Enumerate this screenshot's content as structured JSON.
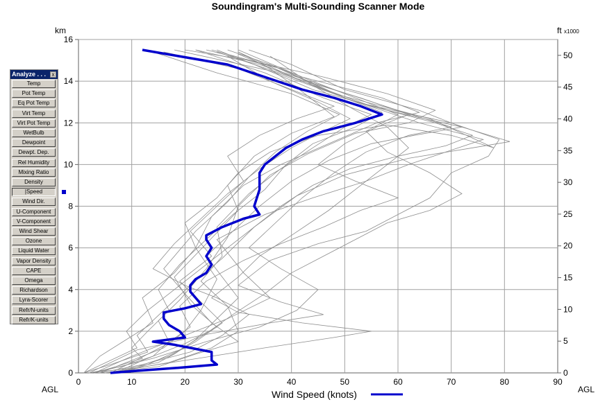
{
  "chart_data": {
    "type": "line",
    "title": "Soundingram's Multi-Sounding Scanner Mode",
    "xlabel": "Wind Speed (knots)",
    "ylabel_left_unit": "km",
    "ylabel_right_unit": "ft",
    "ylabel_right_multiplier": "x1000",
    "bottom_left_label": "AGL",
    "bottom_right_label": "AGL",
    "xlim": [
      0,
      90
    ],
    "ylim": [
      0,
      16
    ],
    "x_ticks": [
      0,
      10,
      20,
      30,
      40,
      50,
      60,
      70,
      80,
      90
    ],
    "y_ticks_left": [
      0,
      2,
      4,
      6,
      8,
      10,
      12,
      14,
      16
    ],
    "y_ticks_right": [
      0,
      5,
      10,
      15,
      20,
      25,
      30,
      35,
      40,
      45,
      50
    ],
    "grid": true,
    "legend": "bottom-center",
    "colors": {
      "mean": "#0000cc",
      "individual": "#8c8c8c",
      "grid": "#a0a0a0"
    },
    "series": [
      {
        "name": "Wind Speed (knots)",
        "role": "mean",
        "x": [
          6,
          11,
          19,
          26,
          25,
          25,
          25,
          21,
          18,
          14,
          20,
          19,
          17,
          16,
          16,
          20,
          23,
          22,
          21,
          21,
          22,
          24,
          25,
          24,
          25,
          24,
          24,
          27,
          31,
          34,
          33,
          34,
          34,
          35,
          37,
          39,
          42,
          46,
          52,
          57,
          53,
          48,
          42,
          35,
          28,
          12
        ],
        "y": [
          0.0,
          0.1,
          0.25,
          0.4,
          0.6,
          0.8,
          1.0,
          1.2,
          1.35,
          1.5,
          1.7,
          2.0,
          2.3,
          2.6,
          2.9,
          3.1,
          3.3,
          3.6,
          3.9,
          4.2,
          4.5,
          4.8,
          5.2,
          5.6,
          6.0,
          6.4,
          6.6,
          7.0,
          7.4,
          7.6,
          8.0,
          8.8,
          9.6,
          10.0,
          10.4,
          10.8,
          11.2,
          11.6,
          12.0,
          12.4,
          12.8,
          13.2,
          13.6,
          14.2,
          14.8,
          15.5
        ]
      }
    ],
    "spaghetti_profiles": [
      [
        [
          2,
          0
        ],
        [
          8,
          0.3
        ],
        [
          14,
          0.8
        ],
        [
          17,
          1.5
        ],
        [
          15,
          2.5
        ],
        [
          19,
          3.5
        ],
        [
          24,
          5
        ],
        [
          28,
          6.5
        ],
        [
          30,
          8
        ],
        [
          36,
          9.5
        ],
        [
          43,
          10.5
        ],
        [
          52,
          11.5
        ],
        [
          62,
          12
        ],
        [
          67,
          12.6
        ],
        [
          58,
          13.4
        ],
        [
          46,
          14.2
        ],
        [
          32,
          15
        ],
        [
          20,
          15.5
        ]
      ],
      [
        [
          4,
          0
        ],
        [
          9,
          0.5
        ],
        [
          16,
          1.2
        ],
        [
          20,
          2
        ],
        [
          23,
          3
        ],
        [
          26,
          4.5
        ],
        [
          22,
          6
        ],
        [
          25,
          7.5
        ],
        [
          31,
          9
        ],
        [
          38,
          10
        ],
        [
          47,
          11
        ],
        [
          56,
          12
        ],
        [
          64,
          12.5
        ],
        [
          57,
          13.2
        ],
        [
          42,
          14.2
        ],
        [
          30,
          15.5
        ]
      ],
      [
        [
          1,
          0
        ],
        [
          6,
          0.4
        ],
        [
          13,
          1
        ],
        [
          11,
          1.8
        ],
        [
          16,
          3
        ],
        [
          21,
          4.2
        ],
        [
          27,
          5.5
        ],
        [
          33,
          7
        ],
        [
          41,
          8.5
        ],
        [
          50,
          9.5
        ],
        [
          62,
          10.3
        ],
        [
          74,
          10.8
        ],
        [
          81,
          11.1
        ],
        [
          72,
          11.8
        ],
        [
          58,
          12.6
        ],
        [
          44,
          13.6
        ],
        [
          33,
          14.8
        ],
        [
          26,
          15.5
        ]
      ],
      [
        [
          7,
          0
        ],
        [
          12,
          0.6
        ],
        [
          20,
          1.4
        ],
        [
          26,
          2.2
        ],
        [
          21,
          3.3
        ],
        [
          18,
          4.6
        ],
        [
          24,
          6.2
        ],
        [
          30,
          7.8
        ],
        [
          28,
          9
        ],
        [
          33,
          10.4
        ],
        [
          40,
          11.5
        ],
        [
          48,
          12.3
        ],
        [
          42,
          13.5
        ],
        [
          36,
          14.6
        ],
        [
          30,
          15.4
        ]
      ],
      [
        [
          3,
          0
        ],
        [
          10,
          0.8
        ],
        [
          18,
          1.6
        ],
        [
          28,
          2.6
        ],
        [
          36,
          3.6
        ],
        [
          31,
          4.8
        ],
        [
          26,
          6.4
        ],
        [
          35,
          7.6
        ],
        [
          44,
          8.4
        ],
        [
          54,
          9.2
        ],
        [
          62,
          10
        ],
        [
          69,
          10.6
        ],
        [
          76,
          11.2
        ],
        [
          64,
          12
        ],
        [
          50,
          13.2
        ],
        [
          38,
          14.6
        ],
        [
          24,
          15.5
        ]
      ],
      [
        [
          5,
          0
        ],
        [
          15,
          0.3
        ],
        [
          22,
          0.9
        ],
        [
          30,
          1.5
        ],
        [
          25,
          2.4
        ],
        [
          20,
          3.8
        ],
        [
          16,
          5
        ],
        [
          22,
          6.8
        ],
        [
          28,
          8.2
        ],
        [
          32,
          9.4
        ],
        [
          37,
          10.6
        ],
        [
          43,
          11.6
        ],
        [
          49,
          12.4
        ],
        [
          40,
          13.4
        ],
        [
          26,
          14.4
        ],
        [
          14,
          15.4
        ]
      ],
      [
        [
          2,
          0
        ],
        [
          11,
          1.1
        ],
        [
          23,
          1.8
        ],
        [
          36,
          2.4
        ],
        [
          46,
          2.8
        ],
        [
          38,
          3.4
        ],
        [
          30,
          4.2
        ],
        [
          36,
          5.4
        ],
        [
          45,
          6.2
        ],
        [
          54,
          6.8
        ],
        [
          60,
          7.6
        ],
        [
          66,
          8.4
        ],
        [
          70,
          9.6
        ],
        [
          77,
          10.4
        ],
        [
          79,
          11.2
        ],
        [
          70,
          12
        ],
        [
          52,
          13
        ],
        [
          40,
          14.2
        ],
        [
          30,
          15.3
        ]
      ],
      [
        [
          6,
          0
        ],
        [
          17,
          0.5
        ],
        [
          25,
          1.2
        ],
        [
          30,
          2
        ],
        [
          28,
          3.2
        ],
        [
          23,
          4.4
        ],
        [
          27,
          5.6
        ],
        [
          26,
          7
        ],
        [
          32,
          8.6
        ],
        [
          38,
          9.8
        ],
        [
          44,
          10.8
        ],
        [
          50,
          11.8
        ],
        [
          55,
          12.4
        ],
        [
          46,
          13.2
        ],
        [
          35,
          14.4
        ],
        [
          22,
          15.5
        ]
      ],
      [
        [
          1,
          0
        ],
        [
          4,
          0.8
        ],
        [
          9,
          1.6
        ],
        [
          14,
          2.4
        ],
        [
          12,
          3.6
        ],
        [
          18,
          4.8
        ],
        [
          22,
          6
        ],
        [
          20,
          7.2
        ],
        [
          26,
          8.4
        ],
        [
          30,
          9.6
        ],
        [
          36,
          10.6
        ],
        [
          45,
          11.4
        ],
        [
          58,
          11.9
        ],
        [
          70,
          11.4
        ],
        [
          78,
          10.8
        ],
        [
          66,
          12.2
        ],
        [
          48,
          13.4
        ],
        [
          36,
          14.8
        ],
        [
          28,
          15.5
        ]
      ],
      [
        [
          8,
          0
        ],
        [
          13,
          0.4
        ],
        [
          19,
          1.1
        ],
        [
          24,
          1.9
        ],
        [
          29,
          2.8
        ],
        [
          35,
          3.8
        ],
        [
          40,
          4.8
        ],
        [
          46,
          5.6
        ],
        [
          52,
          6.4
        ],
        [
          58,
          7.2
        ],
        [
          66,
          7.8
        ],
        [
          72,
          8.6
        ],
        [
          66,
          9.6
        ],
        [
          58,
          10.6
        ],
        [
          54,
          11.6
        ],
        [
          60,
          12.4
        ],
        [
          50,
          13.4
        ],
        [
          38,
          14.6
        ],
        [
          25,
          15.5
        ]
      ],
      [
        [
          3,
          0
        ],
        [
          7,
          0.3
        ],
        [
          12,
          0.7
        ],
        [
          10,
          1.2
        ],
        [
          13,
          2
        ],
        [
          17,
          3
        ],
        [
          15,
          4
        ],
        [
          19,
          5.2
        ],
        [
          24,
          6.4
        ],
        [
          29,
          7.6
        ],
        [
          35,
          8.8
        ],
        [
          39,
          10
        ],
        [
          44,
          11
        ],
        [
          52,
          11.8
        ],
        [
          57,
          12.5
        ],
        [
          49,
          13.3
        ],
        [
          36,
          14.5
        ],
        [
          18,
          15.5
        ]
      ],
      [
        [
          5,
          0
        ],
        [
          20,
          0.6
        ],
        [
          35,
          1.2
        ],
        [
          48,
          1.7
        ],
        [
          55,
          2
        ],
        [
          42,
          2.4
        ],
        [
          30,
          2.9
        ],
        [
          25,
          3.6
        ],
        [
          30,
          4.6
        ],
        [
          34,
          5.6
        ],
        [
          40,
          6.6
        ],
        [
          47,
          7.8
        ],
        [
          52,
          8.8
        ],
        [
          57,
          9.8
        ],
        [
          62,
          10.8
        ],
        [
          58,
          11.8
        ],
        [
          52,
          12.6
        ],
        [
          44,
          13.8
        ],
        [
          36,
          15.2
        ]
      ],
      [
        [
          2,
          0
        ],
        [
          9,
          0.2
        ],
        [
          15,
          0.5
        ],
        [
          18,
          0.9
        ],
        [
          22,
          1.6
        ],
        [
          26,
          2.6
        ],
        [
          30,
          3.6
        ],
        [
          27,
          4.6
        ],
        [
          24,
          5.6
        ],
        [
          29,
          6.8
        ],
        [
          34,
          8
        ],
        [
          40,
          9.2
        ],
        [
          47,
          10.2
        ],
        [
          55,
          11
        ],
        [
          63,
          11.4
        ],
        [
          72,
          11.8
        ],
        [
          64,
          12.6
        ],
        [
          50,
          13.6
        ],
        [
          40,
          14.8
        ],
        [
          32,
          15.5
        ]
      ],
      [
        [
          4,
          0
        ],
        [
          12,
          0.4
        ],
        [
          21,
          1
        ],
        [
          27,
          1.8
        ],
        [
          32,
          2.8
        ],
        [
          26,
          3.6
        ],
        [
          20,
          4.2
        ],
        [
          14,
          5
        ],
        [
          18,
          6.2
        ],
        [
          23,
          7.4
        ],
        [
          28,
          8.6
        ],
        [
          34,
          9.8
        ],
        [
          40,
          10.8
        ],
        [
          46,
          11.6
        ],
        [
          51,
          12.2
        ],
        [
          45,
          13
        ],
        [
          36,
          14
        ],
        [
          28,
          15.2
        ]
      ],
      [
        [
          1,
          0
        ],
        [
          6,
          0.6
        ],
        [
          11,
          1.2
        ],
        [
          9,
          2
        ],
        [
          13,
          3
        ],
        [
          18,
          4
        ],
        [
          23,
          5
        ],
        [
          28,
          6
        ],
        [
          33,
          7
        ],
        [
          38,
          8
        ],
        [
          44,
          9
        ],
        [
          51,
          9.8
        ],
        [
          60,
          10.4
        ],
        [
          69,
          10.9
        ],
        [
          74,
          11.4
        ],
        [
          67,
          12
        ],
        [
          55,
          12.8
        ],
        [
          42,
          14
        ],
        [
          30,
          15.4
        ]
      ],
      [
        [
          6,
          0
        ],
        [
          10,
          0.5
        ],
        [
          16,
          1.3
        ],
        [
          21,
          2.2
        ],
        [
          19,
          3.2
        ],
        [
          24,
          4.4
        ],
        [
          31,
          5.4
        ],
        [
          38,
          6.2
        ],
        [
          46,
          7
        ],
        [
          53,
          7.8
        ],
        [
          60,
          8.4
        ],
        [
          52,
          9.2
        ],
        [
          45,
          10
        ],
        [
          50,
          11
        ],
        [
          56,
          11.8
        ],
        [
          62,
          12.4
        ],
        [
          53,
          13.2
        ],
        [
          40,
          14.2
        ],
        [
          26,
          15.4
        ]
      ],
      [
        [
          3,
          0
        ],
        [
          14,
          0.7
        ],
        [
          24,
          1.5
        ],
        [
          34,
          2.2
        ],
        [
          41,
          3
        ],
        [
          45,
          4
        ],
        [
          38,
          5
        ],
        [
          32,
          6
        ],
        [
          37,
          7.2
        ],
        [
          42,
          8.4
        ],
        [
          48,
          9.6
        ],
        [
          54,
          10.6
        ],
        [
          62,
          11.4
        ],
        [
          70,
          11.8
        ],
        [
          60,
          12.6
        ],
        [
          48,
          13.6
        ],
        [
          34,
          14.8
        ],
        [
          22,
          15.5
        ]
      ],
      [
        [
          7,
          0
        ],
        [
          11,
          0.3
        ],
        [
          17,
          0.8
        ],
        [
          22,
          1.5
        ],
        [
          27,
          2.4
        ],
        [
          23,
          3.4
        ],
        [
          19,
          4.4
        ],
        [
          25,
          5.6
        ],
        [
          21,
          6.8
        ],
        [
          26,
          8
        ],
        [
          31,
          9.2
        ],
        [
          28,
          10.4
        ],
        [
          34,
          11.4
        ],
        [
          41,
          12.2
        ],
        [
          48,
          12.8
        ],
        [
          40,
          13.6
        ],
        [
          30,
          14.6
        ],
        [
          16,
          15.4
        ]
      ]
    ]
  },
  "panel": {
    "title": "Analyze . . .",
    "close_label": "x",
    "buttons": [
      {
        "label": "Temp"
      },
      {
        "label": "Pot Temp"
      },
      {
        "label": "Eq Pot Temp"
      },
      {
        "label": "Virt Temp"
      },
      {
        "label": "Virt Pot Temp"
      },
      {
        "label": "WetBulb"
      },
      {
        "label": "Dewpoint"
      },
      {
        "label": "Dewpt. Dep."
      },
      {
        "label": "Rel Humidity"
      },
      {
        "label": "Mixing Ratio"
      },
      {
        "label": "Density"
      },
      {
        "label": "|Speed",
        "active": true
      },
      {
        "label": "Wind Dir."
      },
      {
        "label": "U-Component"
      },
      {
        "label": "V-Component"
      },
      {
        "label": "Wind Shear"
      },
      {
        "label": "Ozone"
      },
      {
        "label": "Liquid Water"
      },
      {
        "label": "Vapor Density"
      },
      {
        "label": "CAPE"
      },
      {
        "label": "Omega"
      },
      {
        "label": "Richardson"
      },
      {
        "label": "Lyra-Scorer"
      },
      {
        "label": "Refr/N-units"
      },
      {
        "label": "Refr/K-units"
      }
    ]
  }
}
